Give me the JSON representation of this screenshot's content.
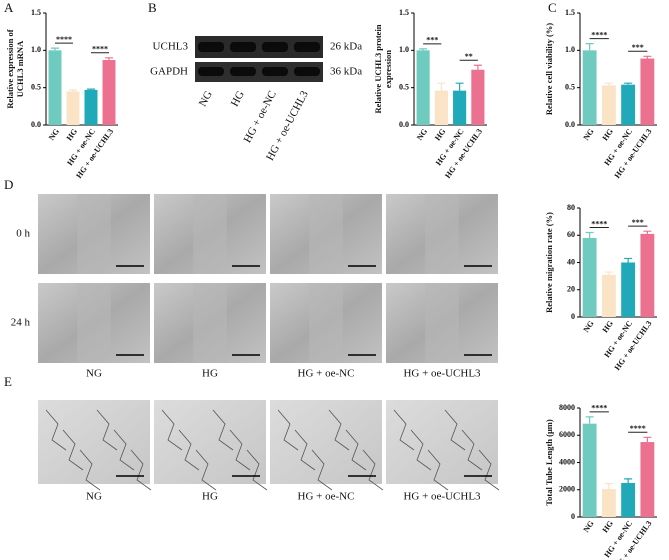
{
  "panels": [
    "A",
    "B",
    "C",
    "D",
    "E"
  ],
  "blot": {
    "bands": [
      "UCHL3",
      "GAPDH"
    ],
    "sizes": [
      "26 kDa",
      "36 kDa"
    ],
    "lanes": [
      "NG",
      "HG",
      "HG + oe-NC",
      "HG + oe-UCHL3"
    ]
  },
  "migration": {
    "times": [
      "0 h",
      "24 h"
    ],
    "groups": [
      "NG",
      "HG",
      "HG + oe-NC",
      "HG + oe-UCHL3"
    ]
  },
  "tube": {
    "groups": [
      "NG",
      "HG",
      "HG + oe-NC",
      "HG + oe-UCHL3"
    ]
  },
  "chart_data": [
    {
      "type": "bar",
      "y_label": [
        "Relative expression of",
        "UCHL3 mRNA"
      ],
      "categories": [
        "NG",
        "HG",
        "HG + oe-NC",
        "HG + oe-UCHL3"
      ],
      "colors": [
        "#6fcbbf",
        "#fbe3c6",
        "#1fa9b9",
        "#ec7090"
      ],
      "values": [
        1.0,
        0.45,
        0.47,
        0.87
      ],
      "errors": [
        0.03,
        0.02,
        0.01,
        0.03
      ],
      "ylim": [
        0,
        1.5
      ],
      "yticks": [
        {
          "value": 0,
          "label": "0.0"
        },
        0.5,
        {
          "value": 1,
          "label": "1.0"
        },
        1.5
      ],
      "annotations": [
        "****",
        "****"
      ]
    },
    {
      "type": "bar",
      "y_label": [
        "Relative UCHL3 protein",
        "expression"
      ],
      "categories": [
        "NG",
        "HG",
        "HG + oe-NC",
        "HG + oe-UCHL3"
      ],
      "colors": [
        "#6fcbbf",
        "#fbe3c6",
        "#1fa9b9",
        "#ec7090"
      ],
      "values": [
        1.0,
        0.46,
        0.46,
        0.74
      ],
      "errors": [
        0.02,
        0.1,
        0.1,
        0.06
      ],
      "ylim": [
        0,
        1.5
      ],
      "yticks": [
        {
          "value": 0,
          "label": "0.0"
        },
        0.5,
        {
          "value": 1,
          "label": "1.0"
        },
        1.5
      ],
      "annotations": [
        "***",
        "**"
      ]
    },
    {
      "type": "bar",
      "y_label": [
        "Relative cell viability (%)"
      ],
      "categories": [
        "NG",
        "HG",
        "HG + oe-NC",
        "HG + oe-UCHL3"
      ],
      "colors": [
        "#6fcbbf",
        "#fbe3c6",
        "#1fa9b9",
        "#ec7090"
      ],
      "values": [
        1.0,
        0.53,
        0.54,
        0.89
      ],
      "errors": [
        0.09,
        0.03,
        0.02,
        0.03
      ],
      "ylim": [
        0,
        1.5
      ],
      "yticks": [
        {
          "value": 0,
          "label": "0.0"
        },
        0.5,
        {
          "value": 1,
          "label": "1.0"
        },
        1.5
      ],
      "annotations": [
        "****",
        "***"
      ]
    },
    {
      "type": "bar",
      "y_label": [
        "Relative migration rate (%)"
      ],
      "categories": [
        "NG",
        "HG",
        "HG + oe-NC",
        "HG + oe-UCHL3"
      ],
      "colors": [
        "#6fcbbf",
        "#fbe3c6",
        "#1fa9b9",
        "#ec7090"
      ],
      "values": [
        58,
        31,
        40,
        61
      ],
      "errors": [
        4,
        2,
        3,
        2
      ],
      "ylim": [
        0,
        80
      ],
      "yticks": [
        0,
        20,
        40,
        60,
        80
      ],
      "annotations": [
        "****",
        "***"
      ]
    },
    {
      "type": "bar",
      "y_label": [
        "Total Tube Length (μm)"
      ],
      "categories": [
        "NG",
        "HG",
        "HG + oe-NC",
        "HG + oe-UCHL3"
      ],
      "colors": [
        "#6fcbbf",
        "#fbe3c6",
        "#1fa9b9",
        "#ec7090"
      ],
      "values": [
        6850,
        2050,
        2500,
        5500
      ],
      "errors": [
        500,
        400,
        300,
        350
      ],
      "ylim": [
        0,
        8000
      ],
      "yticks": [
        0,
        2000,
        4000,
        6000,
        8000
      ],
      "annotations": [
        "****",
        "****"
      ]
    }
  ]
}
